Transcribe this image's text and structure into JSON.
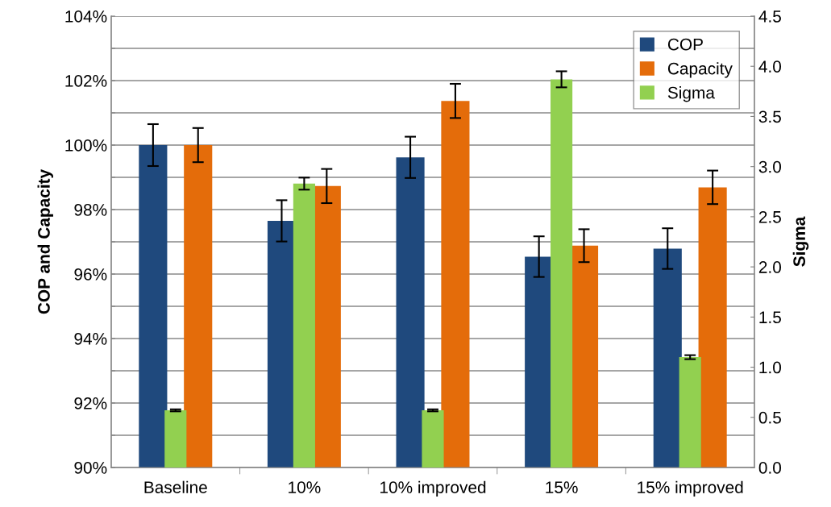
{
  "chart_data": {
    "type": "bar",
    "ylabel": "COP and Capacity",
    "y2label": "Sigma",
    "categories": [
      "Baseline",
      "10%",
      "10% improved",
      "15%",
      "15% improved"
    ],
    "series": [
      {
        "name": "COP",
        "color": "#1f497d",
        "values": [
          100.0,
          97.65,
          99.62,
          96.54,
          96.79
        ],
        "errors": [
          0.65,
          0.64,
          0.64,
          0.63,
          0.63
        ]
      },
      {
        "name": "Capacity",
        "color": "#e46c0a",
        "values": [
          100.0,
          98.73,
          101.37,
          96.88,
          98.69
        ],
        "errors": [
          0.53,
          0.53,
          0.53,
          0.51,
          0.52
        ]
      },
      {
        "name": "Sigma",
        "color": "#92d050",
        "axis": "y2",
        "values": [
          0.57,
          2.83,
          0.57,
          3.87,
          1.1
        ],
        "errors": [
          0.01,
          0.06,
          0.01,
          0.08,
          0.02
        ]
      }
    ],
    "ylim": [
      90,
      104
    ],
    "yticks": [
      {
        "value": 90,
        "label": "90%"
      },
      {
        "value": 91,
        "label": null
      },
      {
        "value": 92,
        "label": "92%"
      },
      {
        "value": 93,
        "label": null
      },
      {
        "value": 94,
        "label": "94%"
      },
      {
        "value": 95,
        "label": null
      },
      {
        "value": 96,
        "label": "96%"
      },
      {
        "value": 97,
        "label": null
      },
      {
        "value": 98,
        "label": "98%"
      },
      {
        "value": 99,
        "label": null
      },
      {
        "value": 100,
        "label": "100%"
      },
      {
        "value": 101,
        "label": null
      },
      {
        "value": 102,
        "label": "102%"
      },
      {
        "value": 103,
        "label": null
      },
      {
        "value": 104,
        "label": "104%"
      }
    ],
    "y2lim": [
      0,
      4.5
    ],
    "y2ticks": [
      {
        "value": 0,
        "label": "0.0"
      },
      {
        "value": 0.5,
        "label": "0.5"
      },
      {
        "value": 1,
        "label": "1.0"
      },
      {
        "value": 1.5,
        "label": "1.5"
      },
      {
        "value": 2,
        "label": "2.0"
      },
      {
        "value": 2.5,
        "label": "2.5"
      },
      {
        "value": 3,
        "label": "3.0"
      },
      {
        "value": 3.5,
        "label": "3.5"
      },
      {
        "value": 4,
        "label": "4.0"
      },
      {
        "value": 4.5,
        "label": "4.5"
      }
    ],
    "grid": "y",
    "legend": "top right"
  }
}
